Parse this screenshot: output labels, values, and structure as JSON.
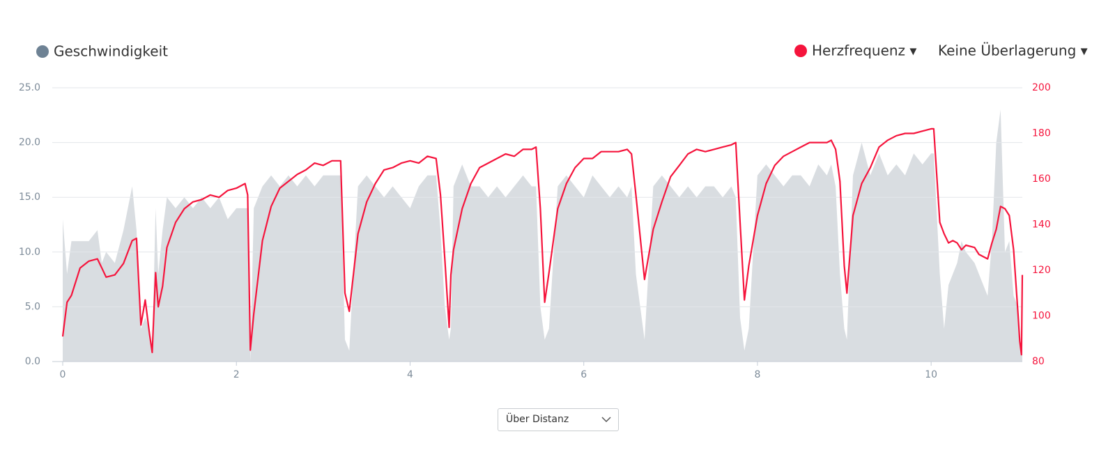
{
  "chart_data": {
    "type": "line",
    "legend_left": "Geschwindigkeit",
    "legend_right": "Herzfrequenz ▾",
    "overlay_select": "Keine Überlagerung ▾",
    "x_mode_select": "Über Distanz",
    "xlim": [
      0,
      11.05
    ],
    "xticks": [
      0,
      2,
      4,
      6,
      8,
      10
    ],
    "ylim": [
      0,
      25
    ],
    "yticks": [
      {
        "value": 0,
        "label": "0.0"
      },
      {
        "value": 5,
        "label": "5.0"
      },
      {
        "value": 10,
        "label": "10.0"
      },
      {
        "value": 15,
        "label": "15.0"
      },
      {
        "value": 20,
        "label": "20.0"
      },
      {
        "value": 25,
        "label": "25.0"
      }
    ],
    "y2lim": [
      80,
      200
    ],
    "y2ticks": [
      80,
      100,
      120,
      140,
      160,
      180,
      200
    ],
    "grid": true,
    "x": [
      0,
      0.05,
      0.1,
      0.2,
      0.3,
      0.4,
      0.45,
      0.5,
      0.6,
      0.7,
      0.8,
      0.85,
      0.9,
      0.95,
      1.0,
      1.03,
      1.07,
      1.1,
      1.15,
      1.2,
      1.3,
      1.4,
      1.5,
      1.6,
      1.7,
      1.8,
      1.9,
      2.0,
      2.1,
      2.13,
      2.16,
      2.2,
      2.3,
      2.4,
      2.5,
      2.6,
      2.7,
      2.8,
      2.9,
      3.0,
      3.1,
      3.2,
      3.25,
      3.3,
      3.4,
      3.5,
      3.6,
      3.7,
      3.8,
      3.9,
      4.0,
      4.1,
      4.2,
      4.3,
      4.35,
      4.4,
      4.45,
      4.47,
      4.5,
      4.6,
      4.7,
      4.8,
      4.9,
      5.0,
      5.1,
      5.2,
      5.3,
      5.4,
      5.45,
      5.5,
      5.55,
      5.6,
      5.7,
      5.8,
      5.9,
      6.0,
      6.1,
      6.2,
      6.3,
      6.4,
      6.5,
      6.55,
      6.6,
      6.7,
      6.8,
      6.9,
      7.0,
      7.1,
      7.2,
      7.3,
      7.4,
      7.5,
      7.6,
      7.7,
      7.75,
      7.8,
      7.85,
      7.9,
      8.0,
      8.1,
      8.2,
      8.3,
      8.4,
      8.5,
      8.6,
      8.7,
      8.8,
      8.85,
      8.9,
      8.95,
      9.0,
      9.03,
      9.1,
      9.2,
      9.3,
      9.4,
      9.5,
      9.6,
      9.7,
      9.8,
      9.9,
      10.0,
      10.03,
      10.1,
      10.15,
      10.2,
      10.25,
      10.3,
      10.35,
      10.4,
      10.5,
      10.55,
      10.65,
      10.7,
      10.75,
      10.8,
      10.85,
      10.9,
      10.95,
      11.0,
      11.02,
      11.04,
      11.05
    ],
    "series": [
      {
        "name": "Geschwindigkeit",
        "color": "#d9dde1",
        "marker_color": "#6e8294",
        "fill": true,
        "axis": "y",
        "values": [
          13,
          8,
          11,
          11,
          11,
          12,
          9,
          10,
          9,
          12,
          16,
          12,
          3,
          4,
          3,
          1,
          14,
          8,
          12,
          15,
          14,
          15,
          14,
          15,
          14,
          15,
          13,
          14,
          14,
          14,
          0,
          14,
          16,
          17,
          16,
          17,
          16,
          17,
          16,
          17,
          17,
          17,
          2,
          1,
          16,
          17,
          16,
          15,
          16,
          15,
          14,
          16,
          17,
          17,
          12,
          5,
          2,
          3,
          16,
          18,
          16,
          16,
          15,
          16,
          15,
          16,
          17,
          16,
          16,
          5,
          2,
          3,
          16,
          17,
          16,
          15,
          17,
          16,
          15,
          16,
          15,
          16,
          8,
          2,
          16,
          17,
          16,
          15,
          16,
          15,
          16,
          16,
          15,
          16,
          15,
          4,
          1,
          3,
          17,
          18,
          17,
          16,
          17,
          17,
          16,
          18,
          17,
          18,
          16,
          8,
          3,
          2,
          17,
          20,
          17,
          19,
          17,
          18,
          17,
          19,
          18,
          19,
          19,
          8,
          3,
          7,
          8,
          9,
          11,
          10,
          9,
          8,
          6,
          11,
          20,
          23,
          10,
          11,
          6,
          5,
          2,
          1,
          2
        ]
      },
      {
        "name": "Herzfrequenz",
        "color": "#f5143c",
        "fill": false,
        "axis": "y2",
        "values": [
          91,
          106,
          109,
          121,
          124,
          125,
          121,
          117,
          118,
          123,
          133,
          134,
          96,
          107,
          92,
          84,
          119,
          104,
          113,
          130,
          141,
          147,
          150,
          151,
          153,
          152,
          155,
          156,
          158,
          153,
          85,
          101,
          133,
          148,
          156,
          159,
          162,
          164,
          167,
          166,
          168,
          168,
          110,
          102,
          136,
          150,
          158,
          164,
          165,
          167,
          168,
          167,
          170,
          169,
          153,
          125,
          95,
          118,
          129,
          147,
          158,
          165,
          167,
          169,
          171,
          170,
          173,
          173,
          174,
          147,
          106,
          119,
          147,
          158,
          165,
          169,
          169,
          172,
          172,
          172,
          173,
          171,
          153,
          116,
          138,
          150,
          161,
          166,
          171,
          173,
          172,
          173,
          174,
          175,
          176,
          141,
          107,
          122,
          144,
          158,
          166,
          170,
          172,
          174,
          176,
          176,
          176,
          177,
          173,
          159,
          122,
          110,
          144,
          158,
          165,
          174,
          177,
          179,
          180,
          180,
          181,
          182,
          182,
          141,
          136,
          132,
          133,
          132,
          129,
          131,
          130,
          127,
          125,
          132,
          138,
          148,
          147,
          144,
          129,
          101,
          89,
          83,
          118
        ]
      }
    ]
  }
}
